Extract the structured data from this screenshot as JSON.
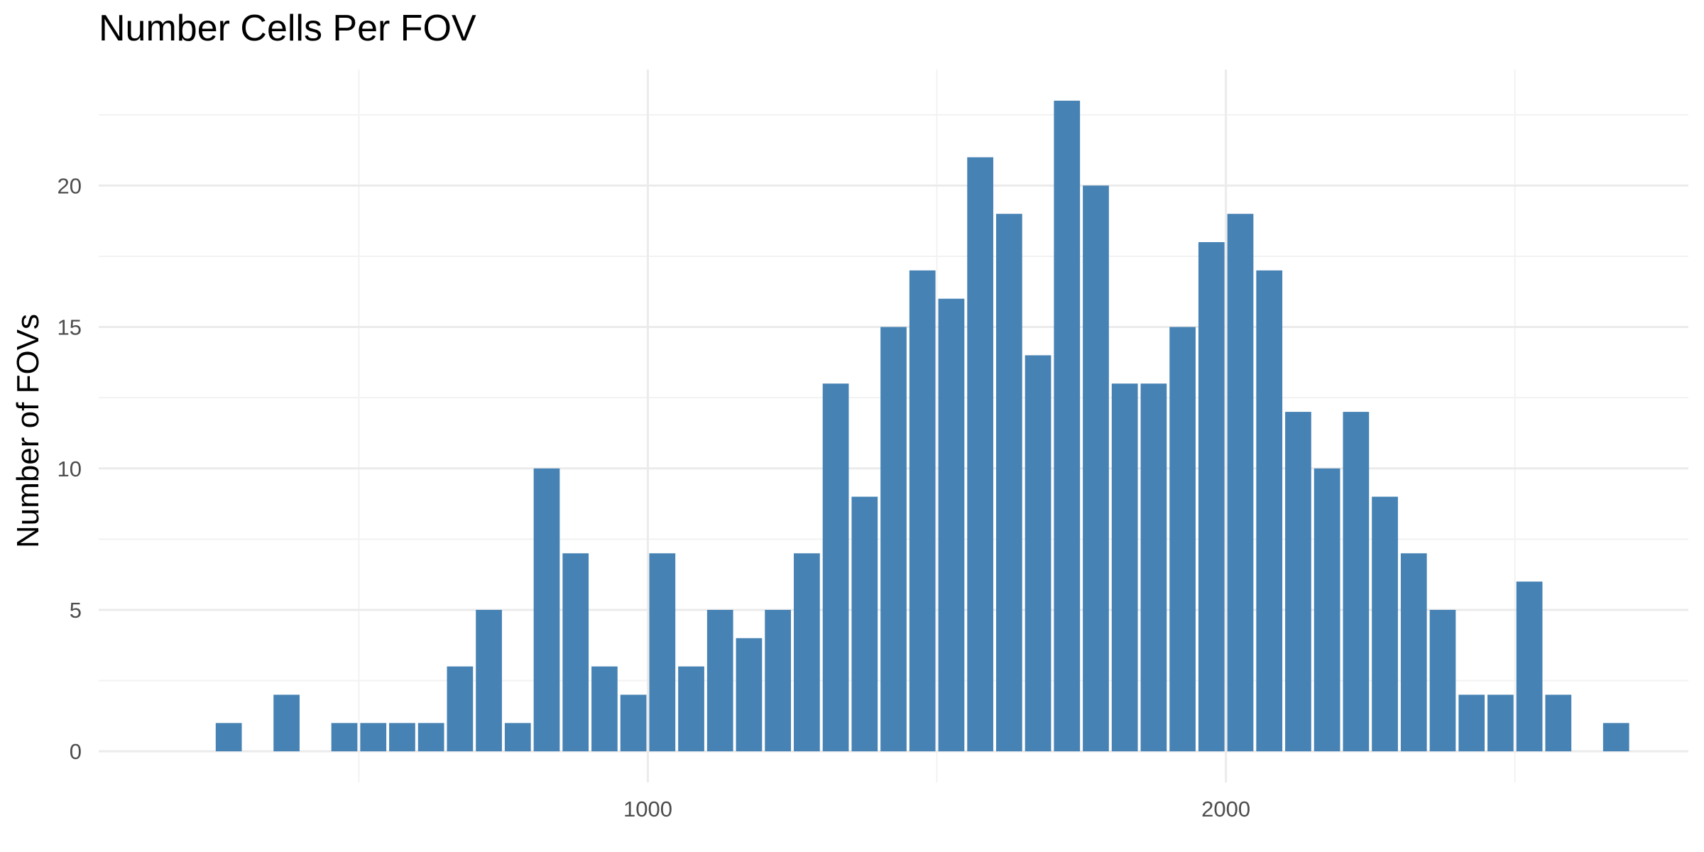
{
  "chart_data": {
    "type": "bar",
    "title": "Number Cells Per FOV",
    "xlabel": "",
    "ylabel": "Number of FOVs",
    "xlim": [
      50,
      2800
    ],
    "ylim": [
      -1.1,
      24.1
    ],
    "bin_width": 50,
    "x": [
      275,
      375,
      475,
      525,
      575,
      625,
      675,
      725,
      775,
      825,
      875,
      925,
      975,
      1025,
      1075,
      1125,
      1175,
      1225,
      1275,
      1325,
      1375,
      1425,
      1475,
      1525,
      1575,
      1625,
      1675,
      1725,
      1775,
      1825,
      1875,
      1925,
      1975,
      2025,
      2075,
      2125,
      2175,
      2225,
      2275,
      2325,
      2375,
      2425,
      2475,
      2525,
      2575,
      2675
    ],
    "values": [
      1,
      2,
      1,
      1,
      1,
      1,
      3,
      5,
      1,
      10,
      7,
      3,
      2,
      7,
      3,
      5,
      4,
      5,
      7,
      13,
      9,
      15,
      17,
      16,
      21,
      19,
      14,
      23,
      20,
      13,
      13,
      15,
      18,
      19,
      17,
      12,
      10,
      12,
      9,
      7,
      5,
      2,
      2,
      6,
      2,
      1
    ],
    "x_ticks": [
      1000,
      2000
    ],
    "x_minor_ticks": [
      500,
      1500,
      2500
    ],
    "y_ticks": [
      0,
      5,
      10,
      15,
      20
    ],
    "y_minor_ticks": [
      2.5,
      7.5,
      12.5,
      17.5,
      22.5
    ],
    "grid": true,
    "legend": "none",
    "colors": {
      "bar": "#4682b4",
      "grid_major": "#ebebeb",
      "grid_minor": "#f2f2f2",
      "tick_text": "#4d4d4d"
    }
  }
}
